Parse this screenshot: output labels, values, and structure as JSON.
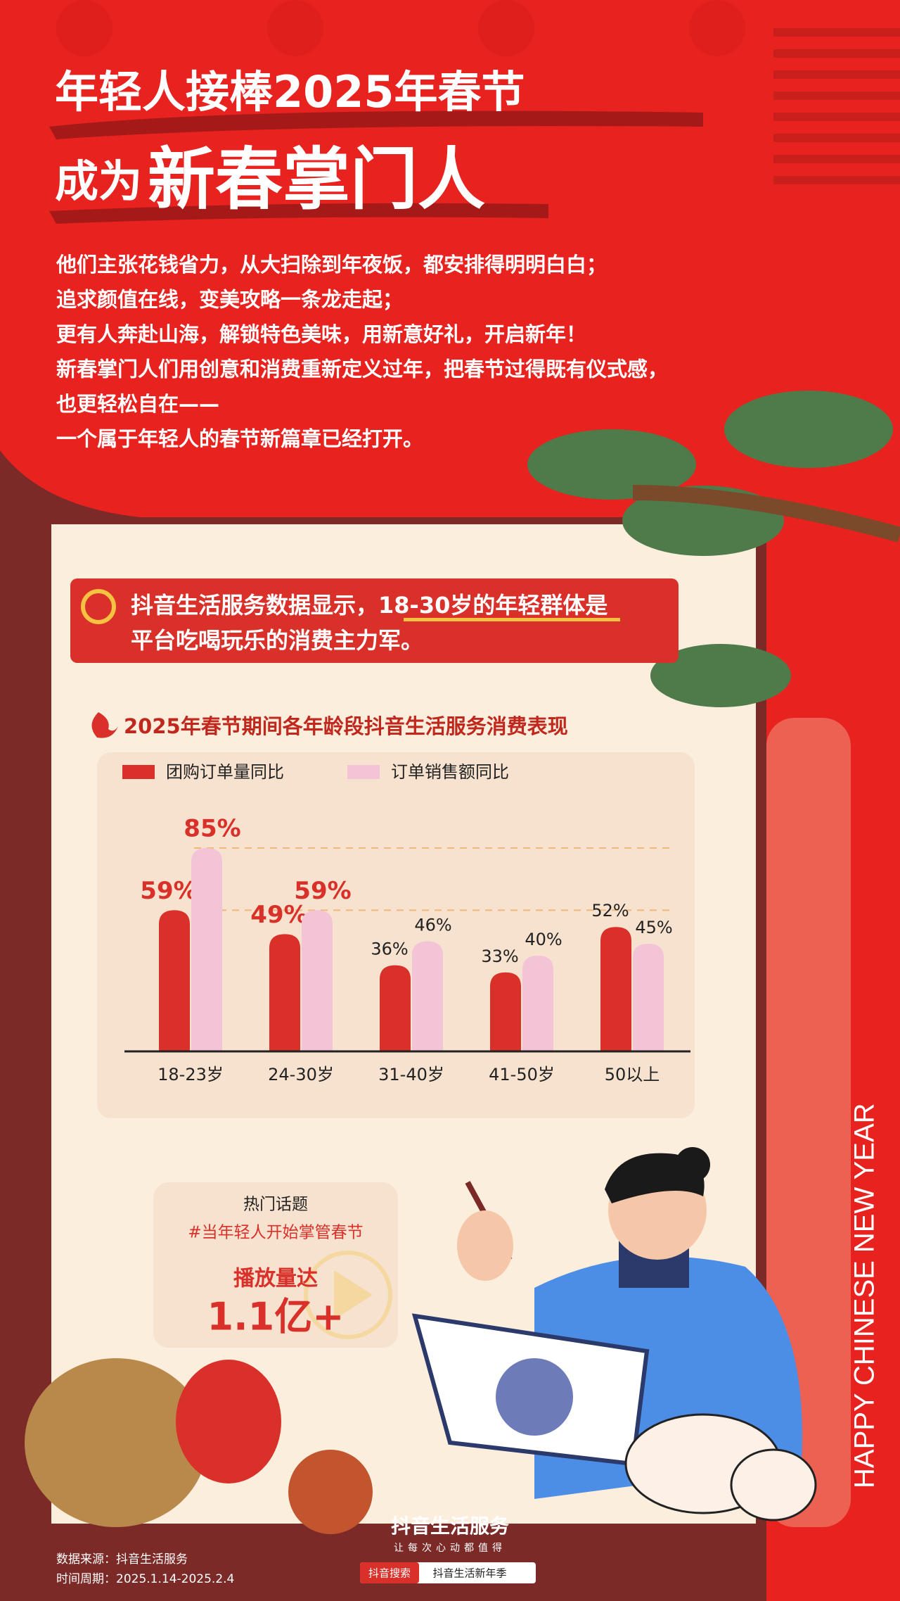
{
  "header": {
    "title_line1": "年轻人接棒2025年春节",
    "title_line2_prefix": "成为",
    "title_line2_main": "新春掌门人"
  },
  "intro": [
    "他们主张花钱省力，从大扫除到年夜饭，都安排得明明白白；",
    "追求颜值在线，变美攻略一条龙走起；",
    "更有人奔赴山海，解锁特色美味，用新意好礼，开启新年！",
    "新春掌门人们用创意和消费重新定义过年，把春节过得既有仪式感，",
    "也更轻松自在——",
    "一个属于年轻人的春节新篇章已经打开。"
  ],
  "highlight": {
    "part1": "抖音生活服务数据显示，",
    "part2": "18-30岁的年轻群体是",
    "part3": "平台吃喝玩乐的消费主力军。"
  },
  "chart_data": {
    "type": "bar",
    "title": "2025年春节期间各年龄段抖音生活服务消费表现",
    "categories": [
      "18-23岁",
      "24-30岁",
      "31-40岁",
      "41-50岁",
      "50以上"
    ],
    "series": [
      {
        "name": "团购订单量同比",
        "color": "#d9302a",
        "values": [
          59,
          49,
          36,
          33,
          52
        ],
        "value_labels": [
          "59%",
          "49%",
          "36%",
          "33%",
          "52%"
        ]
      },
      {
        "name": "订单销售额同比",
        "color": "#f2c4d6",
        "values": [
          85,
          59,
          46,
          40,
          45
        ],
        "value_labels": [
          "85%",
          "59%",
          "46%",
          "40%",
          "45%"
        ]
      }
    ]
  },
  "topic": {
    "label": "热门话题",
    "hashtag": "#当年轻人开始掌管春节",
    "play_label": "播放量达",
    "play_value": "1.1亿+"
  },
  "vertical_text": "HAPPY CHINESE NEW YEAR",
  "footer": {
    "brand": "抖音生活服务",
    "slogan": "让每次心动都值得",
    "search_tag": "抖音搜索",
    "search_term": "抖音生活新年季",
    "source": "数据来源：抖音生活服务",
    "period": "时间周期：2025.1.14-2025.2.4"
  }
}
